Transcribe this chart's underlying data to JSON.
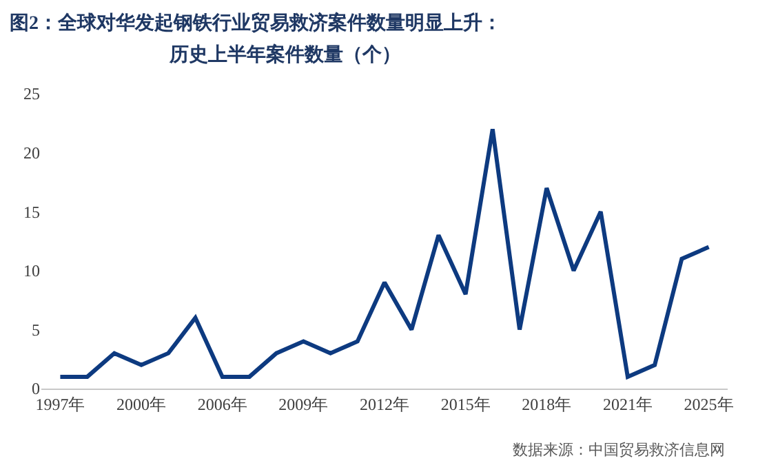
{
  "chart_data": {
    "type": "line",
    "title": "图2：全球对华发起钢铁行业贸易救济案件数量明显上升：",
    "subtitle": "历史上半年案件数量（个）",
    "categories": [
      "1997年",
      null,
      null,
      "2000年",
      null,
      null,
      "2006年",
      null,
      null,
      "2009年",
      null,
      null,
      "2012年",
      null,
      null,
      "2015年",
      null,
      null,
      "2018年",
      null,
      null,
      "2021年",
      null,
      null,
      "2025年"
    ],
    "series": [
      {
        "color": "#0d3a80",
        "values": [
          1,
          1,
          3,
          2,
          3,
          6,
          1,
          1,
          3,
          4,
          3,
          4,
          9,
          5,
          13,
          8,
          22,
          5,
          17,
          10,
          15,
          1,
          2,
          11,
          12
        ]
      }
    ],
    "ylim": [
      0,
      25
    ],
    "yticks": [
      0,
      5,
      10,
      15,
      20,
      25
    ],
    "marker": "none",
    "line_style": "solid",
    "annotations": [
      "数据来源：中国贸易救济信息网"
    ]
  }
}
